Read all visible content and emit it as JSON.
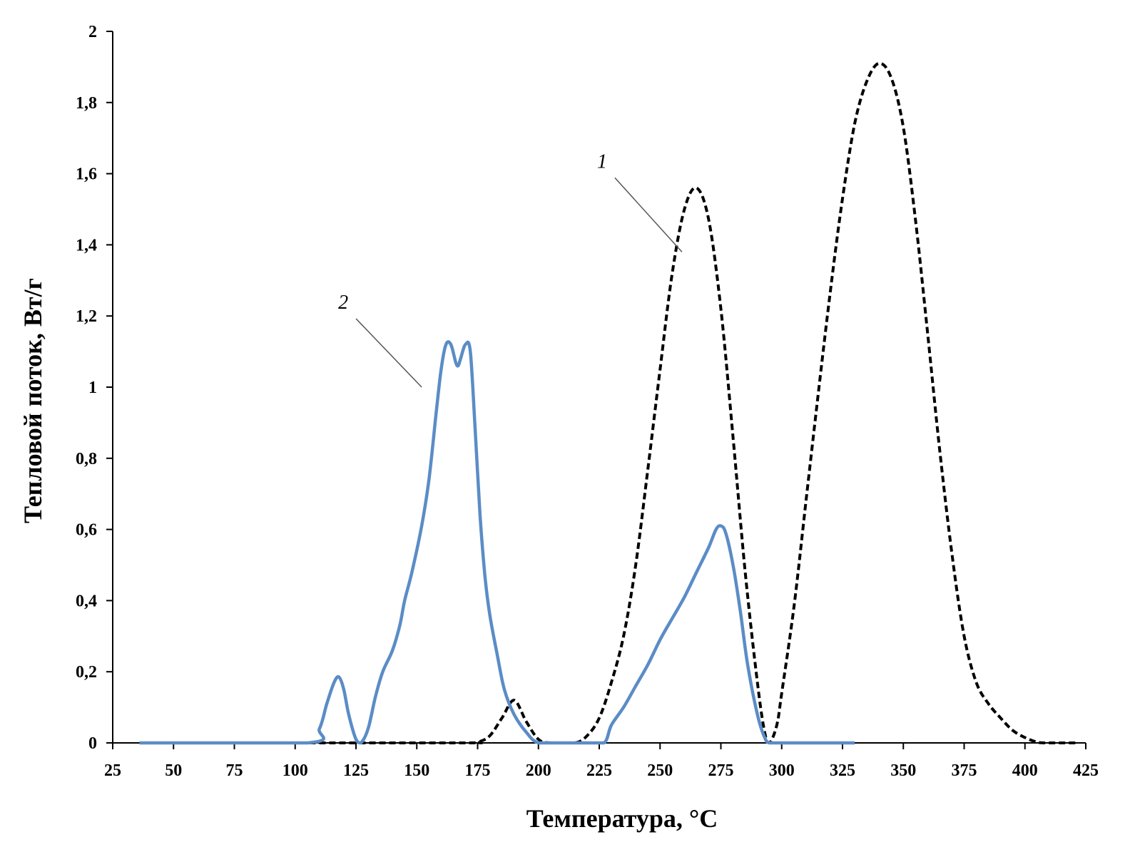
{
  "chart_data": {
    "type": "line",
    "xlabel": "Температура, °C",
    "ylabel": "Тепловой поток, Вт/г",
    "xlim": [
      25,
      425
    ],
    "ylim": [
      0,
      2
    ],
    "x_ticks": [
      25,
      50,
      75,
      100,
      125,
      150,
      175,
      200,
      225,
      250,
      275,
      300,
      325,
      350,
      375,
      400,
      425
    ],
    "y_ticks": [
      0,
      0.2,
      0.4,
      0.6,
      0.8,
      1,
      1.2,
      1.4,
      1.6,
      1.8,
      2
    ],
    "y_tick_labels": [
      "0",
      "0,2",
      "0,4",
      "0,6",
      "0,8",
      "1",
      "1,2",
      "1,4",
      "1,6",
      "1,8",
      "2"
    ],
    "grid": false,
    "legend": "none",
    "series": [
      {
        "name": "1",
        "color": "#000000",
        "style": "dashed",
        "x": [
          36,
          100,
          170,
          175,
          180,
          185,
          190,
          195,
          200,
          205,
          215,
          220,
          225,
          230,
          235,
          240,
          245,
          250,
          255,
          260,
          265,
          270,
          275,
          280,
          285,
          290,
          293,
          295,
          298,
          300,
          305,
          310,
          315,
          320,
          325,
          330,
          335,
          340,
          345,
          350,
          355,
          360,
          365,
          370,
          375,
          380,
          385,
          390,
          395,
          400,
          405,
          408,
          415,
          421
        ],
        "y": [
          0,
          0,
          0,
          0.002,
          0.02,
          0.07,
          0.12,
          0.06,
          0.01,
          0,
          0,
          0.02,
          0.07,
          0.17,
          0.3,
          0.5,
          0.77,
          1.05,
          1.32,
          1.5,
          1.56,
          1.47,
          1.22,
          0.86,
          0.48,
          0.17,
          0.03,
          0,
          0.05,
          0.14,
          0.38,
          0.68,
          0.98,
          1.27,
          1.53,
          1.74,
          1.86,
          1.91,
          1.87,
          1.73,
          1.47,
          1.15,
          0.82,
          0.53,
          0.3,
          0.17,
          0.11,
          0.07,
          0.035,
          0.015,
          0.002,
          0,
          0,
          0
        ]
      },
      {
        "name": "2",
        "color": "#5b8cc6",
        "style": "solid",
        "x": [
          36,
          105,
          110,
          113,
          116,
          118,
          120,
          122,
          125,
          127,
          130,
          133,
          136,
          140,
          143,
          145,
          148,
          152,
          155,
          158,
          160,
          162,
          164,
          166,
          167,
          168,
          170,
          172,
          174,
          176,
          178,
          180,
          183,
          186,
          190,
          195,
          200,
          210,
          220,
          227,
          230,
          235,
          240,
          245,
          250,
          255,
          260,
          265,
          270,
          273,
          275,
          277,
          280,
          283,
          286,
          290,
          293,
          295,
          300,
          330
        ],
        "y": [
          0,
          0,
          0.04,
          0.11,
          0.17,
          0.185,
          0.15,
          0.08,
          0.01,
          0,
          0.04,
          0.13,
          0.2,
          0.26,
          0.33,
          0.4,
          0.48,
          0.61,
          0.74,
          0.93,
          1.05,
          1.12,
          1.12,
          1.07,
          1.06,
          1.08,
          1.12,
          1.1,
          0.88,
          0.64,
          0.47,
          0.36,
          0.25,
          0.15,
          0.08,
          0.03,
          0,
          0,
          0,
          0,
          0.05,
          0.1,
          0.16,
          0.22,
          0.29,
          0.35,
          0.41,
          0.48,
          0.55,
          0.6,
          0.61,
          0.59,
          0.5,
          0.37,
          0.22,
          0.08,
          0.015,
          0,
          0,
          0
        ]
      }
    ],
    "annotations": [
      {
        "text": "1",
        "series": "1",
        "at": [
          259,
          1.38
        ]
      },
      {
        "text": "2",
        "series": "2",
        "at": [
          152,
          1.0
        ]
      }
    ]
  }
}
